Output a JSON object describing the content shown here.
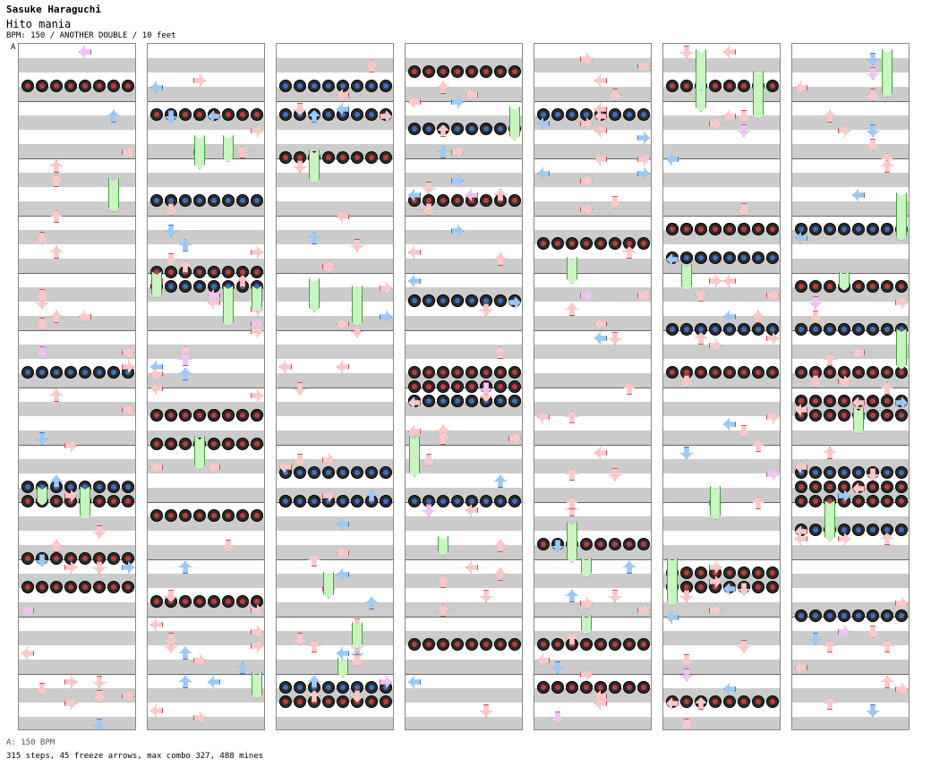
{
  "header": {
    "artist": "Sasuke Haraguchi",
    "title": "Hito mania",
    "info": "BPM: 150 / ANOTHER DOUBLE / 10 feet"
  },
  "chart": {
    "bpm_marker": "A",
    "columns": 7,
    "measures_per_column": 12,
    "lanes": 8,
    "colors": {
      "stripe_light": "#ffffff",
      "stripe_dark": "#cccccc",
      "arrow_red": "#ffc8c8",
      "arrow_blue": "#9cc9f5",
      "arrow_pink": "#f2c2f5",
      "freeze_green": "#c8f5c0",
      "mine_body": "#2b2b2b",
      "mine_core_red": "#c43b3b",
      "mine_core_blue": "#3b6fc4"
    }
  },
  "footer": {
    "bpm_line": "A: 150 BPM",
    "stats": "315 steps, 45 freeze arrows, max combo 327, 488 mines"
  }
}
